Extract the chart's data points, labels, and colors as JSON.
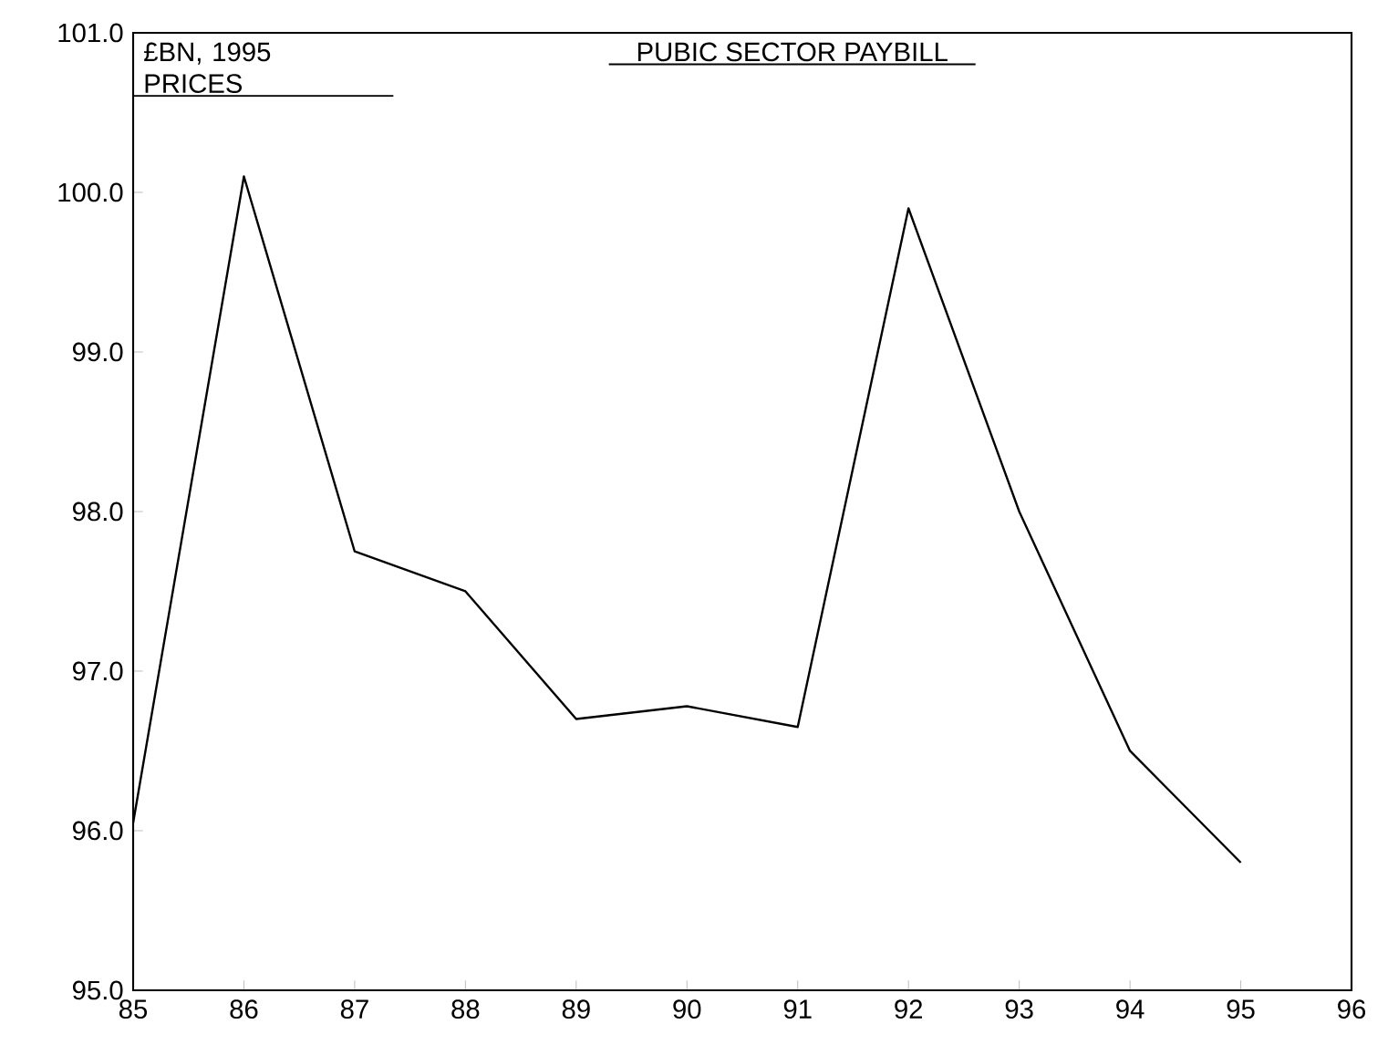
{
  "chart_data": {
    "type": "line",
    "title": "PUBIC SECTOR PAYBILL",
    "ylabel": "£BN, 1995 PRICES",
    "x": [
      85,
      86,
      87,
      88,
      89,
      90,
      91,
      92,
      93,
      94,
      95
    ],
    "values": [
      96.05,
      100.1,
      97.75,
      97.5,
      96.7,
      96.78,
      96.65,
      99.9,
      98.0,
      96.5,
      95.8
    ],
    "color": "#000000",
    "xlim": [
      85,
      96
    ],
    "xticks": [
      85,
      86,
      87,
      88,
      89,
      90,
      91,
      92,
      93,
      94,
      95,
      96
    ],
    "ylim": [
      95,
      101
    ],
    "yticks": [
      {
        "value": 95,
        "label": "95.0"
      },
      {
        "value": 96,
        "label": "96.0"
      },
      {
        "value": 97,
        "label": "97.0"
      },
      {
        "value": 98,
        "label": "98.0"
      },
      {
        "value": 99,
        "label": "99.0"
      },
      {
        "value": 100,
        "label": "100.0"
      },
      {
        "value": 101,
        "label": "101.0"
      }
    ],
    "grid": false,
    "marker": "none",
    "line_style": "solid"
  }
}
